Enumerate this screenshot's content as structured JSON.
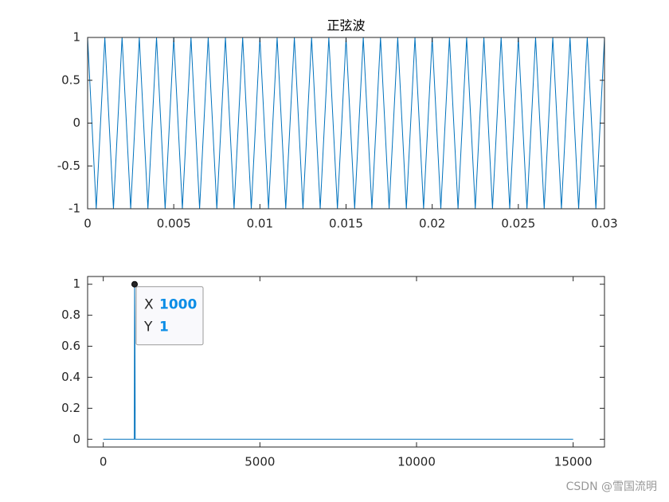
{
  "chart_data": [
    {
      "type": "line",
      "title": "正弦波",
      "x": [
        0,
        0.0005,
        0.001,
        0.0015,
        0.002,
        0.0025,
        0.003,
        0.0035,
        0.004,
        0.0045,
        0.005,
        0.0055,
        0.006,
        0.0065,
        0.007,
        0.0075,
        0.008,
        0.0085,
        0.009,
        0.0095,
        0.01,
        0.0105,
        0.011,
        0.0115,
        0.012,
        0.0125,
        0.013,
        0.0135,
        0.014,
        0.0145,
        0.015,
        0.0155,
        0.016,
        0.0165,
        0.017,
        0.0175,
        0.018,
        0.0185,
        0.019,
        0.0195,
        0.02,
        0.0205,
        0.021,
        0.0215,
        0.022,
        0.0225,
        0.023,
        0.0235,
        0.024,
        0.0245,
        0.025,
        0.0255,
        0.026,
        0.0265,
        0.027,
        0.0275,
        0.028,
        0.0285,
        0.029,
        0.0295,
        0.03
      ],
      "series": [
        {
          "color": "#0072bd",
          "values": [
            1,
            -1,
            1,
            -1,
            1,
            -1,
            1,
            -1,
            1,
            -1,
            1,
            -1,
            1,
            -1,
            1,
            -1,
            1,
            -1,
            1,
            -1,
            1,
            -1,
            1,
            -1,
            1,
            -1,
            1,
            -1,
            1,
            -1,
            1,
            -1,
            1,
            -1,
            1,
            -1,
            1,
            -1,
            1,
            -1,
            1,
            -1,
            1,
            -1,
            1,
            -1,
            1,
            -1,
            1,
            -1,
            1,
            -1,
            1,
            -1,
            1,
            -1,
            1,
            -1,
            1,
            -1,
            1
          ]
        }
      ],
      "xlim": [
        0,
        0.03
      ],
      "xticks": [
        0,
        0.005,
        0.01,
        0.015,
        0.02,
        0.025,
        0.03
      ],
      "ylim": [
        -1,
        1
      ],
      "yticks": [
        -1,
        -0.5,
        0,
        0.5,
        1
      ]
    },
    {
      "type": "line",
      "x": [
        0,
        990,
        1000,
        1010,
        1020,
        15000
      ],
      "series": [
        {
          "color": "#0072bd",
          "values": [
            0,
            0,
            1,
            0.72,
            0,
            0
          ]
        }
      ],
      "xlim": [
        -500,
        16000
      ],
      "xticks": [
        0,
        5000,
        10000,
        15000
      ],
      "ylim": [
        -0.05,
        1.05
      ],
      "yticks": [
        0,
        0.2,
        0.4,
        0.6,
        0.8,
        1
      ],
      "datatip": {
        "x_label": "X",
        "x": 1000,
        "y_label": "Y",
        "y": 1
      }
    }
  ],
  "watermark": "CSDN @雪国流明"
}
